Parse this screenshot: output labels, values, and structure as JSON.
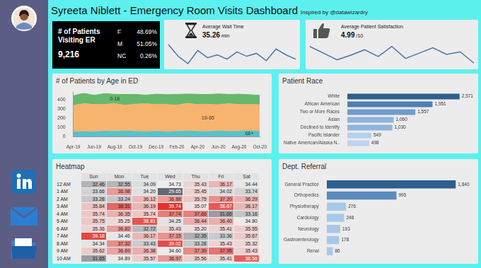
{
  "title": "Syreeta Niblett - Emergency Room Visits Dashboard",
  "subtitle": "Inspired by @datawizardry",
  "patients": {
    "label": "# of Patients Visiting ER",
    "total": {
      "value": 9216,
      "label": "9,216"
    },
    "gender": [
      {
        "name": "F",
        "value": 48.69,
        "label": "48.69%"
      },
      {
        "name": "M",
        "value": 51.05,
        "label": "51.05%"
      },
      {
        "name": "NC",
        "value": 0.26,
        "label": "0.26%"
      }
    ]
  },
  "chart_data": [
    {
      "type": "line",
      "title": "Average Wait Time",
      "value": 35.26,
      "unit": "min",
      "values": [
        35.9,
        35.1,
        34.6,
        35.5,
        35.0,
        35.2,
        34.9,
        35.4,
        35.1,
        35.3,
        34.8,
        35.6,
        35.2,
        34.9
      ],
      "color": "#4a78a8",
      "ylim": [
        34.4,
        36.0
      ],
      "grid": false,
      "tick_labels": false
    },
    {
      "type": "line",
      "title": "Average Patient Satisfaction",
      "value": 4.99,
      "unit": "/10",
      "values": [
        5.1,
        5.0,
        4.9,
        4.97,
        5.05,
        4.95,
        5.1,
        4.92,
        5.0,
        5.08,
        4.98,
        5.02,
        4.85
      ],
      "color": "#4a78a8",
      "ylim": [
        4.8,
        5.15
      ],
      "grid": false,
      "tick_labels": false
    },
    {
      "type": "area",
      "title": "# of Patients by Age in ED",
      "stacked": true,
      "grid": false,
      "categories": [
        "Apr-19",
        null,
        "Jun-19",
        null,
        "Aug-19",
        null,
        "Oct-19",
        null,
        "Dec-19",
        null,
        "Feb-20",
        null,
        "Apr-20",
        null,
        "Jun-20",
        null,
        "Aug-20",
        null,
        "Oct-20"
      ],
      "series": [
        {
          "name": "66+",
          "color": "#56c2ce",
          "values": [
            50,
            55,
            52,
            58,
            55,
            60,
            55,
            53,
            57,
            52,
            55,
            58,
            56,
            54,
            60,
            55,
            57,
            62,
            55
          ]
        },
        {
          "name": "19-65",
          "color": "#f6b46e",
          "values": [
            285,
            300,
            295,
            290,
            300,
            280,
            295,
            300,
            290,
            295,
            285,
            300,
            290,
            295,
            285,
            300,
            290,
            285,
            290
          ]
        },
        {
          "name": "0-18",
          "color": "#66b86c",
          "values": [
            105,
            110,
            100,
            115,
            100,
            115,
            105,
            95,
            110,
            105,
            115,
            100,
            110,
            105,
            115,
            100,
            110,
            105,
            100
          ]
        }
      ],
      "ylim": [
        0,
        480
      ],
      "yticks": [
        0,
        100,
        200,
        300,
        400
      ]
    },
    {
      "type": "bar",
      "orientation": "horizontal",
      "title": "Patient Race",
      "categories": [
        "White",
        "African American",
        "Two or More Races",
        "Asian",
        "Declined to Identify",
        "Pacific Islander",
        "Native American/Alaska N.."
      ],
      "values": [
        2571,
        1951,
        1557,
        1060,
        1030,
        549,
        498
      ],
      "value_labels": [
        "2,571",
        "1,951",
        "1,557",
        "1,060",
        "1,030",
        "549",
        "498"
      ],
      "colors": [
        "#2e5f8e",
        "#4f7fb3",
        "#6f9ccc",
        "#8db3dc",
        "#8fb5dd",
        "#b5d0ec",
        "#bcd4ee"
      ],
      "xlim": [
        0,
        2900
      ],
      "data_labels": true,
      "tick_labels": "y",
      "grid": false
    },
    {
      "type": "bar",
      "orientation": "horizontal",
      "title": "Dept. Referral",
      "categories": [
        "General Practice",
        "Orthopedics",
        "Physiotherapy",
        "Cardiology",
        "Neurology",
        "Gastroenterology",
        "Renal"
      ],
      "values": [
        1840,
        995,
        276,
        248,
        193,
        178,
        86
      ],
      "value_labels": [
        "1,840",
        "995",
        "276",
        "248",
        "193",
        "178",
        "86"
      ],
      "colors": [
        "#2e5f8e",
        "#5a89bd",
        "#a8c8ea",
        "#a8c8ea",
        "#a8c8ea",
        "#a8c8ea",
        "#a8c8ea"
      ],
      "xlim": [
        0,
        2100
      ],
      "data_labels": true,
      "tick_labels": "y",
      "grid": false
    }
  ],
  "heatmap": {
    "title": "Heatmap",
    "columns": [
      "Sun",
      "Mon",
      "Tue",
      "Wed",
      "Thu",
      "Fri",
      "Sat"
    ],
    "rows": [
      {
        "label": "12 AM",
        "values": [
          32.46,
          32.55,
          34.09,
          34.73,
          35.43,
          36.17,
          34.44
        ]
      },
      {
        "label": "1 AM",
        "values": [
          33.66,
          36.98,
          34.2,
          29.65,
          35.45,
          34.02,
          33.74
        ]
      },
      {
        "label": "2 AM",
        "values": [
          33.28,
          33.24,
          36.12,
          36.88,
          35.75,
          37.2,
          36.29
        ]
      },
      {
        "label": "3 AM",
        "values": [
          35.84,
          38.31,
          36.19,
          39.74,
          35.07,
          38.67,
          36.17
        ]
      },
      {
        "label": "4 AM",
        "values": [
          35.74,
          36.35,
          35.74,
          37.74,
          37.66,
          31.65,
          33.16
        ]
      },
      {
        "label": "5 AM",
        "values": [
          35.75,
          35.25,
          38.81,
          34.25,
          36.44,
          36.4,
          34.8
        ]
      },
      {
        "label": "6 AM",
        "values": [
          35.36,
          36.82,
          32.72,
          35.43,
          35.2,
          35.41,
          35.55
        ]
      },
      {
        "label": "7 AM",
        "values": [
          39.18,
          34.46,
          36.17,
          37.15,
          32.35,
          33.36,
          35.67
        ]
      },
      {
        "label": "8 AM",
        "values": [
          34.34,
          37.32,
          33.43,
          39.02,
          33.28,
          35.43,
          35.32
        ]
      },
      {
        "label": "9 AM",
        "values": [
          35.62,
          36.69,
          36.38,
          34.6,
          37.39,
          37.95,
          35.43
        ]
      },
      {
        "label": "10 AM",
        "values": [
          31.65,
          34.89,
          35.57,
          36.97,
          35.56,
          35.41,
          38.56
        ]
      }
    ]
  }
}
